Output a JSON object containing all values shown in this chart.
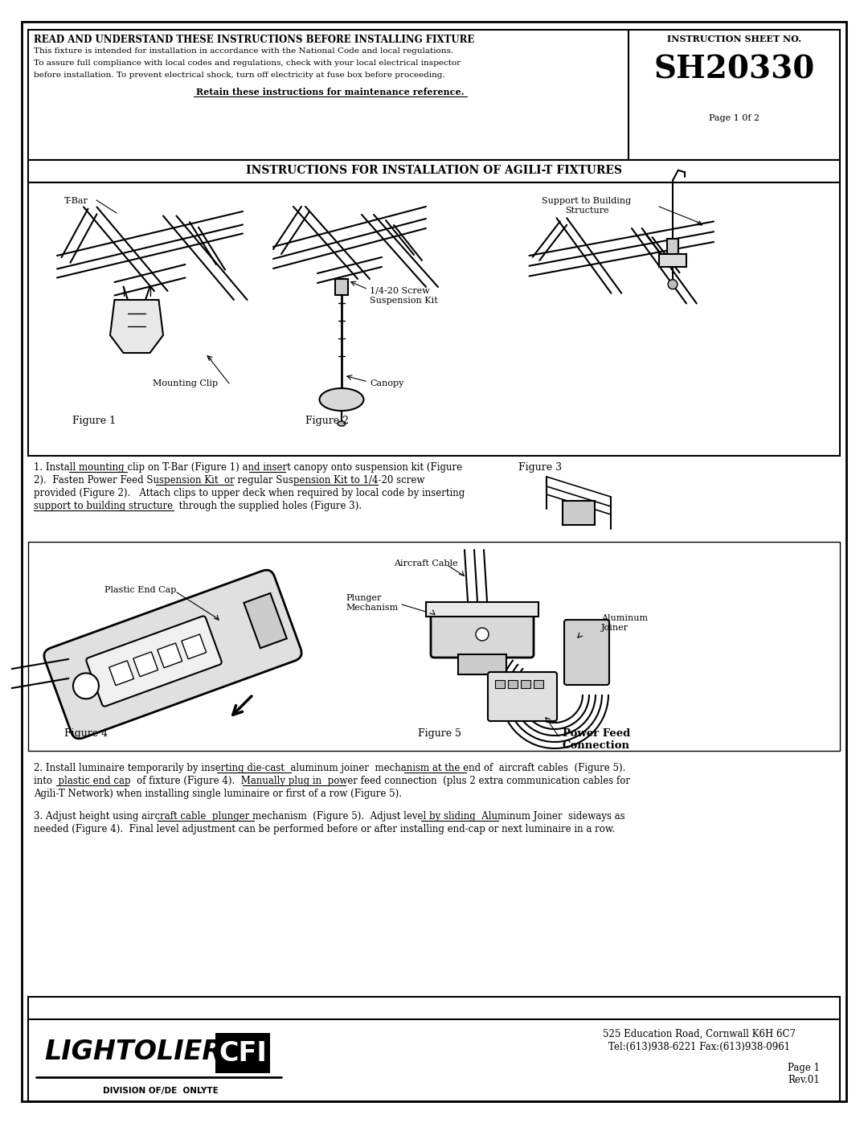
{
  "page_bg": "#ffffff",
  "header_bold": "READ AND UNDERSTAND THESE INSTRUCTIONS BEFORE INSTALLING FIXTURE",
  "header_right_label": "INSTRUCTION SHEET NO.",
  "sheet_number": "SH20330",
  "page_label": "Page 1 0f 2",
  "header_body_line1": "This fixture is intended for installation in accordance with the National Code and local regulations.",
  "header_body_line2": "To assure full compliance with local codes and regulations, check with your local electrical inspector",
  "header_body_line3": "before installation. To prevent electrical shock, turn off electricity at fuse box before proceeding.",
  "header_retain": "Retain these instructions for maintenance reference.",
  "section_title": "INSTRUCTIONS FOR INSTALLATION OF AGILI-T FIXTURES",
  "label_tbar": "T-Bar",
  "label_mounting_clip": "Mounting Clip",
  "label_suspension_kit": "1/4-20 Screw\nSuspension Kit",
  "label_canopy": "Canopy",
  "label_support": "Support to Building\nStructure",
  "label_plastic_end_cap": "Plastic End Cap",
  "label_aircraft_cable": "Aircraft Cable",
  "label_plunger": "Plunger\nMechanism",
  "label_aluminum_joiner": "Aluminum\nJoiner",
  "label_power_feed": "Power Feed\nConnection",
  "fig1_label": "Figure 1",
  "fig2_label": "Figure 2",
  "fig3_label": "Figure 3",
  "fig4_label": "Figure 4",
  "fig5_label": "Figure 5",
  "step1_line1": "1. Install mounting clip on T-Bar (Figure 1) and insert canopy onto suspension kit (Figure",
  "step1_line2": "2).  Fasten Power Feed Suspension Kit  or regular Suspension Kit to 1/4-20 screw",
  "step1_line3": "provided (Figure 2).   Attach clips to upper deck when required by local code by inserting",
  "step1_line4": "support to building structure  through the supplied holes (Figure 3).",
  "step2_line1": "2. Install luminaire temporarily by inserting die-cast  aluminum joiner  mechanism at the end of  aircraft cables  (Figure 5).",
  "step2_line2": "into  plastic end cap  of fixture (Figure 4).  Manually plug in  power feed connection  (plus 2 extra communication cables for",
  "step2_line3": "Agili-T Network) when installing single luminaire or first of a row (Figure 5).",
  "step3_line1": "3. Adjust height using aircraft cable  plunger mechanism  (Figure 5).  Adjust level by sliding  Aluminum Joiner  sideways as",
  "step3_line2": "needed (Figure 4).  Final level adjustment can be performed before or after installing end-cap or next luminaire in a row.",
  "footer_addr1": "525 Education Road, Cornwall K6H 6C7",
  "footer_addr2": "Tel:(613)938-6221 Fax:(613)938-0961",
  "footer_page": "Page 1",
  "footer_rev": "Rev.01",
  "footer_division": "DIVISION OF/DE ONLYTE",
  "footer_lightolier": "LIGHTOLIER",
  "footer_cfi": "CFI"
}
